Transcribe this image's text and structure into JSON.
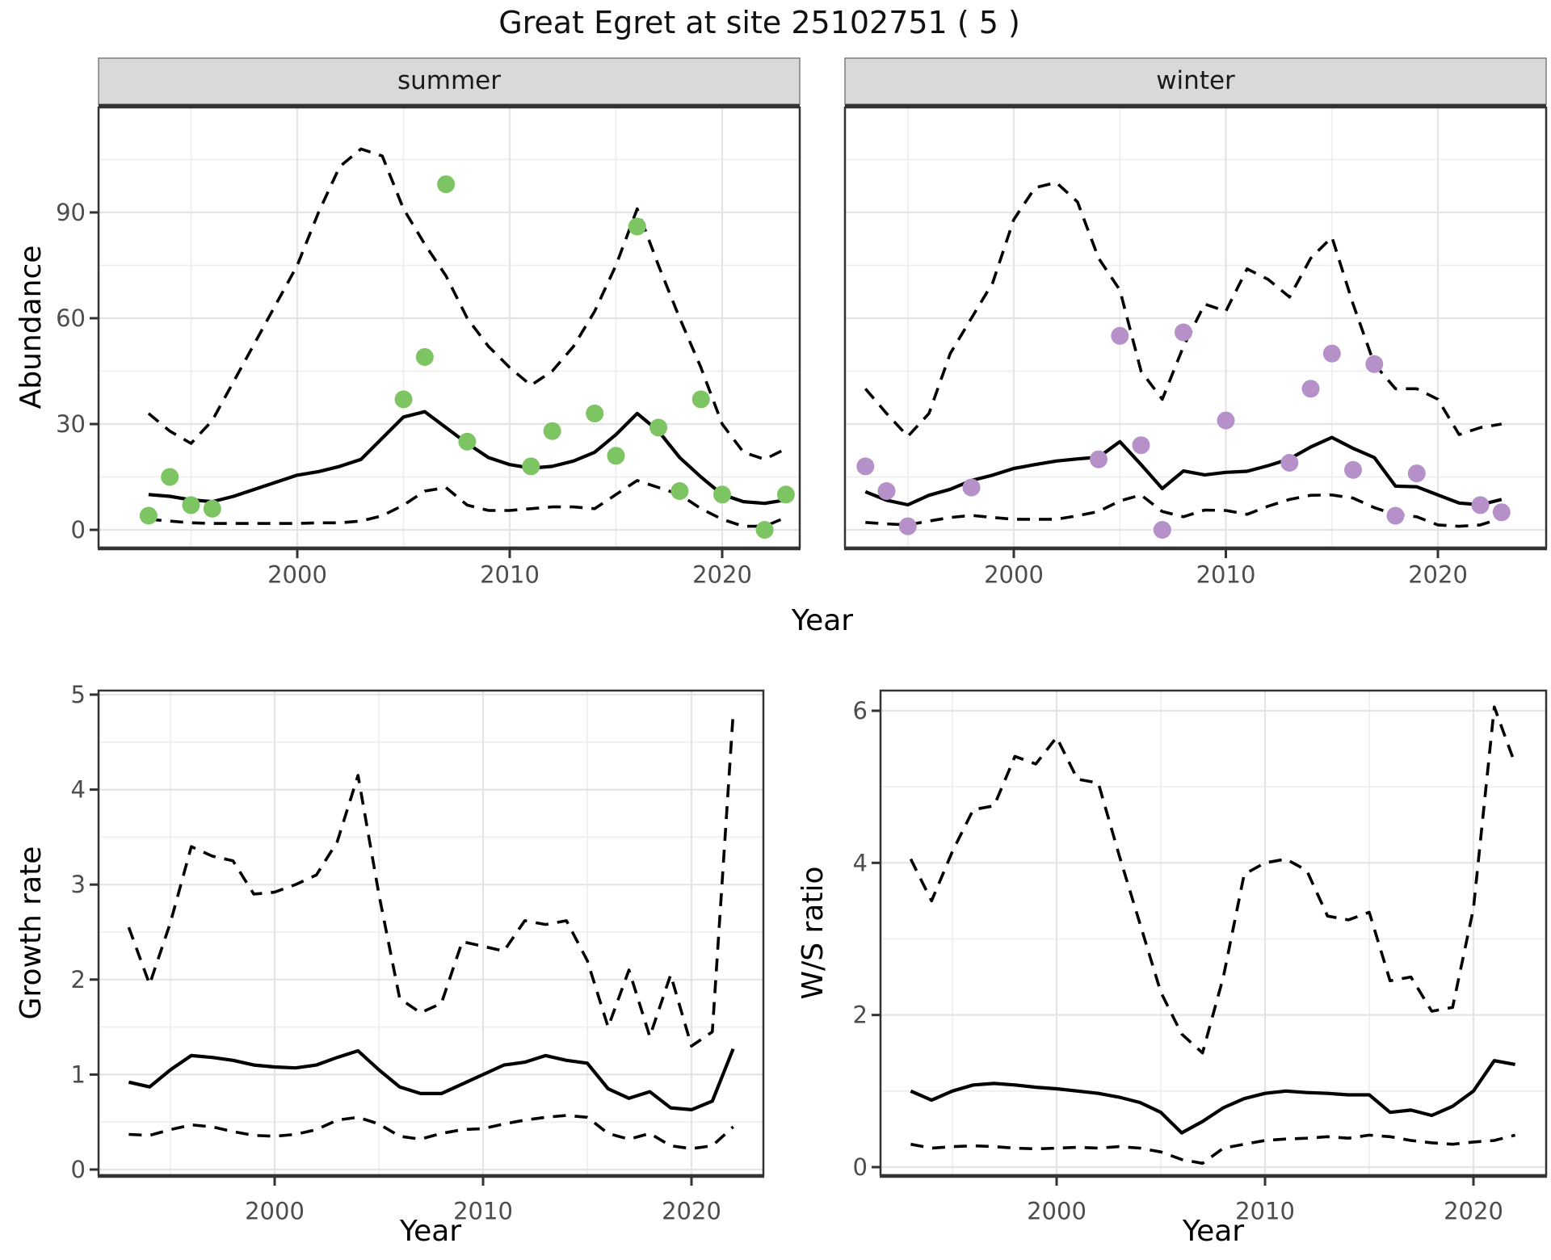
{
  "title": "Great Egret at site 25102751 ( 5 )",
  "facets": [
    {
      "label": "summer"
    },
    {
      "label": "winter"
    }
  ],
  "axes": {
    "abundance_label": "Abundance",
    "year_label_top": "Year",
    "growth_label": "Growth rate",
    "year_label_bottom_left": "Year",
    "ws_label": "W/S ratio",
    "year_label_bottom_right": "Year"
  },
  "colors": {
    "summer_points": "#7dc462",
    "winter_points": "#b690c8",
    "line": "#000000",
    "strip_bg": "#d9d9d9",
    "strip_edge": "#7f7f7f",
    "grid_major": "#e4e4e4",
    "grid_minor": "#efefef",
    "tick_label": "#4d4d4d",
    "border": "#333333"
  },
  "chart_data": [
    {
      "id": "abundance_summer",
      "type": "line+scatter",
      "facet_label": "summer",
      "xlabel": "Year",
      "ylabel": "Abundance",
      "x_ticks": [
        2000,
        2010,
        2020
      ],
      "y_ticks": [
        0,
        30,
        60,
        90
      ],
      "xlim": [
        1991,
        2024
      ],
      "ylim": [
        -5,
        120
      ],
      "grid": true,
      "x": [
        1993,
        1994,
        1995,
        1996,
        1997,
        1998,
        1999,
        2000,
        2001,
        2002,
        2003,
        2004,
        2005,
        2006,
        2007,
        2008,
        2009,
        2010,
        2011,
        2012,
        2013,
        2014,
        2015,
        2016,
        2017,
        2018,
        2019,
        2020,
        2021,
        2022,
        2023
      ],
      "series": [
        {
          "name": "median_fit",
          "style": "solid",
          "values": [
            10,
            9.5,
            8.5,
            8,
            9.5,
            11.5,
            13.5,
            15.5,
            16.5,
            18,
            20,
            26,
            32,
            33.5,
            29,
            24.5,
            20.5,
            18.5,
            17.5,
            18,
            19.5,
            22,
            27,
            33,
            28,
            20.5,
            15,
            10,
            8,
            7.5,
            8.5
          ]
        },
        {
          "name": "upper_ci",
          "style": "dashed",
          "values": [
            33,
            28,
            24.5,
            31,
            42,
            53,
            64,
            75,
            90,
            103,
            108,
            106,
            91,
            81,
            72,
            60,
            52,
            46,
            41,
            45,
            52,
            62,
            75,
            91,
            75,
            60,
            46,
            30,
            22,
            20,
            23
          ]
        },
        {
          "name": "lower_ci",
          "style": "dashed",
          "values": [
            3,
            2.5,
            2,
            1.8,
            1.8,
            1.8,
            1.8,
            1.8,
            2,
            2,
            2.5,
            4,
            7,
            11,
            12,
            7,
            5.5,
            5.5,
            6,
            6.5,
            6.5,
            6,
            10,
            14,
            12,
            10,
            6,
            3,
            1,
            1,
            3.5
          ]
        }
      ],
      "points": {
        "x": [
          1993,
          1994,
          1995,
          1996,
          2005,
          2006,
          2007,
          2008,
          2011,
          2012,
          2014,
          2015,
          2016,
          2017,
          2018,
          2019,
          2020,
          2022,
          2023
        ],
        "y": [
          4,
          15,
          7,
          6,
          37,
          49,
          98,
          25,
          18,
          28,
          33,
          21,
          86,
          29,
          11,
          37,
          10,
          0,
          10
        ],
        "color": "#7dc462"
      }
    },
    {
      "id": "abundance_winter",
      "type": "line+scatter",
      "facet_label": "winter",
      "xlabel": "Year",
      "ylabel": "Abundance",
      "x_ticks": [
        2000,
        2010,
        2020
      ],
      "y_ticks": [
        0,
        30,
        60,
        90
      ],
      "xlim": [
        1991,
        2024
      ],
      "ylim": [
        -5,
        120
      ],
      "grid": true,
      "x": [
        1993,
        1994,
        1995,
        1996,
        1997,
        1998,
        1999,
        2000,
        2001,
        2002,
        2003,
        2004,
        2005,
        2006,
        2007,
        2008,
        2009,
        2010,
        2011,
        2012,
        2013,
        2014,
        2015,
        2016,
        2017,
        2018,
        2019,
        2020,
        2021,
        2022,
        2023
      ],
      "series": [
        {
          "name": "median_fit",
          "style": "solid",
          "values": [
            10.8,
            8.4,
            7.1,
            9.8,
            11.5,
            14,
            15.5,
            17.4,
            18.5,
            19.5,
            20.1,
            20.6,
            25,
            18.5,
            11.7,
            16.7,
            15.6,
            16.3,
            16.6,
            18.2,
            20.1,
            23.5,
            26.2,
            23.1,
            20.5,
            12.4,
            12.2,
            9.9,
            7.6,
            7.1,
            8.6
          ]
        },
        {
          "name": "upper_ci",
          "style": "dashed",
          "values": [
            40,
            33,
            26.5,
            33,
            50,
            60,
            70,
            88,
            97,
            98.5,
            93,
            77,
            68,
            45,
            37,
            52,
            64,
            62,
            74,
            71,
            66,
            77,
            83,
            64,
            47,
            40,
            40,
            37,
            27,
            29,
            30
          ]
        },
        {
          "name": "lower_ci",
          "style": "dashed",
          "values": [
            2.1,
            1.7,
            1.4,
            2.5,
            3.5,
            4.1,
            3.5,
            3,
            3,
            3,
            4,
            5.2,
            8.2,
            9.9,
            5.2,
            3.7,
            5.6,
            5.5,
            4.4,
            6.7,
            8.6,
            9.8,
            9.9,
            9,
            6.3,
            4.3,
            3.7,
            1.4,
            1,
            1.4,
            3.3
          ]
        }
      ],
      "points": {
        "x": [
          1993,
          1994,
          1995,
          1998,
          2004,
          2005,
          2006,
          2007,
          2008,
          2010,
          2013,
          2014,
          2015,
          2016,
          2017,
          2018,
          2019,
          2022,
          2023
        ],
        "y": [
          18,
          11,
          1,
          12,
          20,
          55,
          24,
          0,
          56,
          31,
          19,
          40,
          50,
          17,
          47,
          4,
          16,
          7,
          5
        ],
        "color": "#b690c8"
      }
    },
    {
      "id": "growth_rate",
      "type": "line",
      "xlabel": "Year",
      "ylabel": "Growth rate",
      "x_ticks": [
        2000,
        2010,
        2020
      ],
      "y_ticks": [
        0,
        1,
        2,
        3,
        4,
        5
      ],
      "xlim": [
        1991.5,
        2023.5
      ],
      "ylim": [
        0,
        5
      ],
      "grid": true,
      "x": [
        1993,
        1994,
        1995,
        1996,
        1997,
        1998,
        1999,
        2000,
        2001,
        2002,
        2003,
        2004,
        2005,
        2006,
        2007,
        2008,
        2009,
        2010,
        2011,
        2012,
        2013,
        2014,
        2015,
        2016,
        2017,
        2018,
        2019,
        2020,
        2021,
        2022
      ],
      "series": [
        {
          "name": "median_fit",
          "style": "solid",
          "values": [
            0.92,
            0.87,
            1.05,
            1.2,
            1.18,
            1.15,
            1.1,
            1.08,
            1.07,
            1.1,
            1.18,
            1.25,
            1.05,
            0.87,
            0.8,
            0.8,
            0.9,
            1.0,
            1.1,
            1.13,
            1.2,
            1.15,
            1.12,
            0.85,
            0.75,
            0.82,
            0.65,
            0.63,
            0.72,
            1.27
          ]
        },
        {
          "name": "upper_ci",
          "style": "dashed",
          "values": [
            2.55,
            1.95,
            2.6,
            3.4,
            3.3,
            3.25,
            2.9,
            2.92,
            3.0,
            3.1,
            3.45,
            4.15,
            2.9,
            1.8,
            1.65,
            1.75,
            2.4,
            2.35,
            2.3,
            2.62,
            2.58,
            2.62,
            2.2,
            1.5,
            2.1,
            1.4,
            2.05,
            1.3,
            1.45,
            4.8
          ]
        },
        {
          "name": "lower_ci",
          "style": "dashed",
          "values": [
            0.37,
            0.36,
            0.42,
            0.47,
            0.45,
            0.4,
            0.36,
            0.35,
            0.37,
            0.42,
            0.52,
            0.55,
            0.48,
            0.35,
            0.32,
            0.38,
            0.42,
            0.43,
            0.48,
            0.52,
            0.55,
            0.57,
            0.55,
            0.38,
            0.32,
            0.38,
            0.25,
            0.22,
            0.25,
            0.45
          ]
        }
      ]
    },
    {
      "id": "ws_ratio",
      "type": "line",
      "xlabel": "Year",
      "ylabel": "W/S ratio",
      "x_ticks": [
        2000,
        2010,
        2020
      ],
      "y_ticks": [
        0,
        2,
        4,
        6
      ],
      "xlim": [
        1991.5,
        2023.5
      ],
      "ylim": [
        0,
        6.3
      ],
      "grid": true,
      "x": [
        1993,
        1994,
        1995,
        1996,
        1997,
        1998,
        1999,
        2000,
        2001,
        2002,
        2003,
        2004,
        2005,
        2006,
        2007,
        2008,
        2009,
        2010,
        2011,
        2012,
        2013,
        2014,
        2015,
        2016,
        2017,
        2018,
        2019,
        2020,
        2021,
        2022
      ],
      "series": [
        {
          "name": "median_fit",
          "style": "solid",
          "values": [
            1.0,
            0.88,
            1.0,
            1.08,
            1.1,
            1.08,
            1.05,
            1.03,
            1.0,
            0.97,
            0.92,
            0.85,
            0.72,
            0.45,
            0.6,
            0.78,
            0.9,
            0.97,
            1.0,
            0.98,
            0.97,
            0.95,
            0.95,
            0.72,
            0.75,
            0.68,
            0.8,
            1.0,
            1.4,
            1.35
          ]
        },
        {
          "name": "upper_ci",
          "style": "dashed",
          "values": [
            4.05,
            3.5,
            4.15,
            4.7,
            4.75,
            5.4,
            5.3,
            5.65,
            5.1,
            5.05,
            4.1,
            3.2,
            2.3,
            1.75,
            1.5,
            2.5,
            3.85,
            4.0,
            4.05,
            3.9,
            3.3,
            3.25,
            3.35,
            2.45,
            2.5,
            2.05,
            2.1,
            3.4,
            6.05,
            5.3
          ]
        },
        {
          "name": "lower_ci",
          "style": "dashed",
          "values": [
            0.3,
            0.25,
            0.27,
            0.28,
            0.27,
            0.25,
            0.24,
            0.25,
            0.26,
            0.25,
            0.27,
            0.25,
            0.2,
            0.1,
            0.05,
            0.25,
            0.3,
            0.35,
            0.37,
            0.38,
            0.4,
            0.38,
            0.42,
            0.4,
            0.35,
            0.32,
            0.3,
            0.33,
            0.35,
            0.42
          ]
        }
      ]
    }
  ]
}
